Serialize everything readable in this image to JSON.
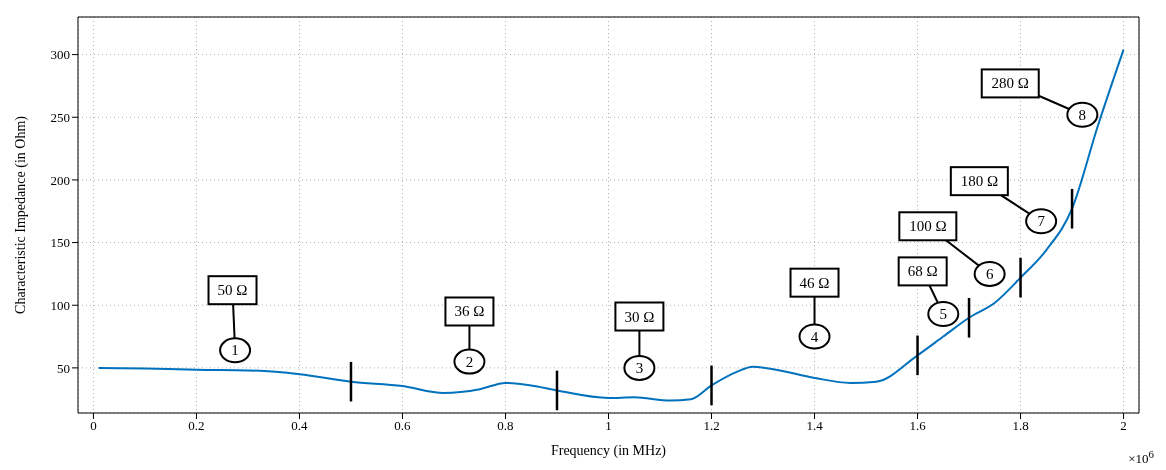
{
  "chart_data": {
    "type": "line",
    "xlabel": "Frequency (in MHz)",
    "ylabel": "Characteristic Impedance (in Ohm)",
    "x": [
      0.01,
      0.1,
      0.2,
      0.3,
      0.4,
      0.5,
      0.6,
      0.68,
      0.75,
      0.8,
      0.85,
      0.9,
      1.0,
      1.05,
      1.12,
      1.16,
      1.2,
      1.25,
      1.28,
      1.32,
      1.4,
      1.47,
      1.52,
      1.6,
      1.65,
      1.7,
      1.75,
      1.8,
      1.85,
      1.9,
      1.95,
      2.0
    ],
    "series": [
      {
        "color": "#0072bd",
        "values": [
          50,
          49.5,
          48.5,
          48,
          45,
          39,
          35.5,
          30,
          33,
          38,
          36,
          32,
          26,
          26.5,
          24,
          25,
          36,
          47,
          51,
          49,
          42,
          38,
          39,
          60,
          75,
          90,
          102,
          122,
          144,
          177,
          243,
          304
        ]
      }
    ],
    "xlim": [
      -0.03,
      2.03
    ],
    "xticks": [
      0,
      0.2,
      0.4,
      0.6,
      0.8,
      1,
      1.2,
      1.4,
      1.6,
      1.8,
      2
    ],
    "ylim": [
      14,
      330
    ],
    "yticks": [
      50,
      100,
      150,
      200,
      250,
      300
    ],
    "grid": true,
    "marker": "none",
    "line_style": "solid",
    "ref_lines": [
      {
        "axis": "x",
        "value": 0.5,
        "color": "#000000"
      },
      {
        "axis": "x",
        "value": 0.9,
        "color": "#000000"
      },
      {
        "axis": "x",
        "value": 1.2,
        "color": "#000000"
      },
      {
        "axis": "x",
        "value": 1.6,
        "color": "#000000"
      },
      {
        "axis": "x",
        "value": 1.7,
        "color": "#000000"
      },
      {
        "axis": "x",
        "value": 1.8,
        "color": "#000000"
      },
      {
        "axis": "x",
        "value": 1.9,
        "color": "#000000"
      }
    ],
    "annotations": [
      "50 Ω",
      "1",
      "36 Ω",
      "2",
      "30 Ω",
      "3",
      "46 Ω",
      "4",
      "68 Ω",
      "5",
      "100 Ω",
      "6",
      "180 Ω",
      "7",
      "280 Ω",
      "8",
      "×10$^{6}$"
    ]
  }
}
